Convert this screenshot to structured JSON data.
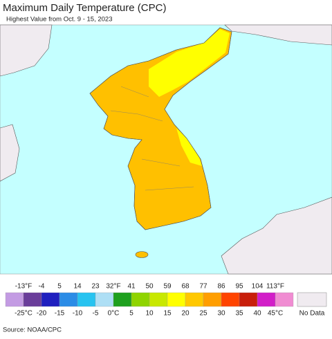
{
  "title": "Maximum Daily Temperature (CPC)",
  "subtitle": "Highest Value from Oct. 9 - 15, 2023",
  "legend": {
    "colors": [
      "#c39be3",
      "#6a3d9a",
      "#1f1fbf",
      "#2b8ce6",
      "#27c3f0",
      "#aedff5",
      "#1ea01e",
      "#8fd400",
      "#c8e800",
      "#ffff00",
      "#ffc800",
      "#ff9e00",
      "#ff4400",
      "#c81e0a",
      "#d21ec8",
      "#f08cd2"
    ],
    "fahrenheit": [
      "-13°F",
      "-4",
      "5",
      "14",
      "23",
      "32°F",
      "41",
      "50",
      "59",
      "68",
      "77",
      "86",
      "95",
      "104",
      "113°F"
    ],
    "celsius": [
      "-25°C",
      "-20",
      "-15",
      "-10",
      "-5",
      "0°C",
      "5",
      "10",
      "15",
      "20",
      "25",
      "30",
      "35",
      "40",
      "45°C"
    ],
    "no_data": "No Data"
  },
  "source": "Source: NOAA/CPC"
}
